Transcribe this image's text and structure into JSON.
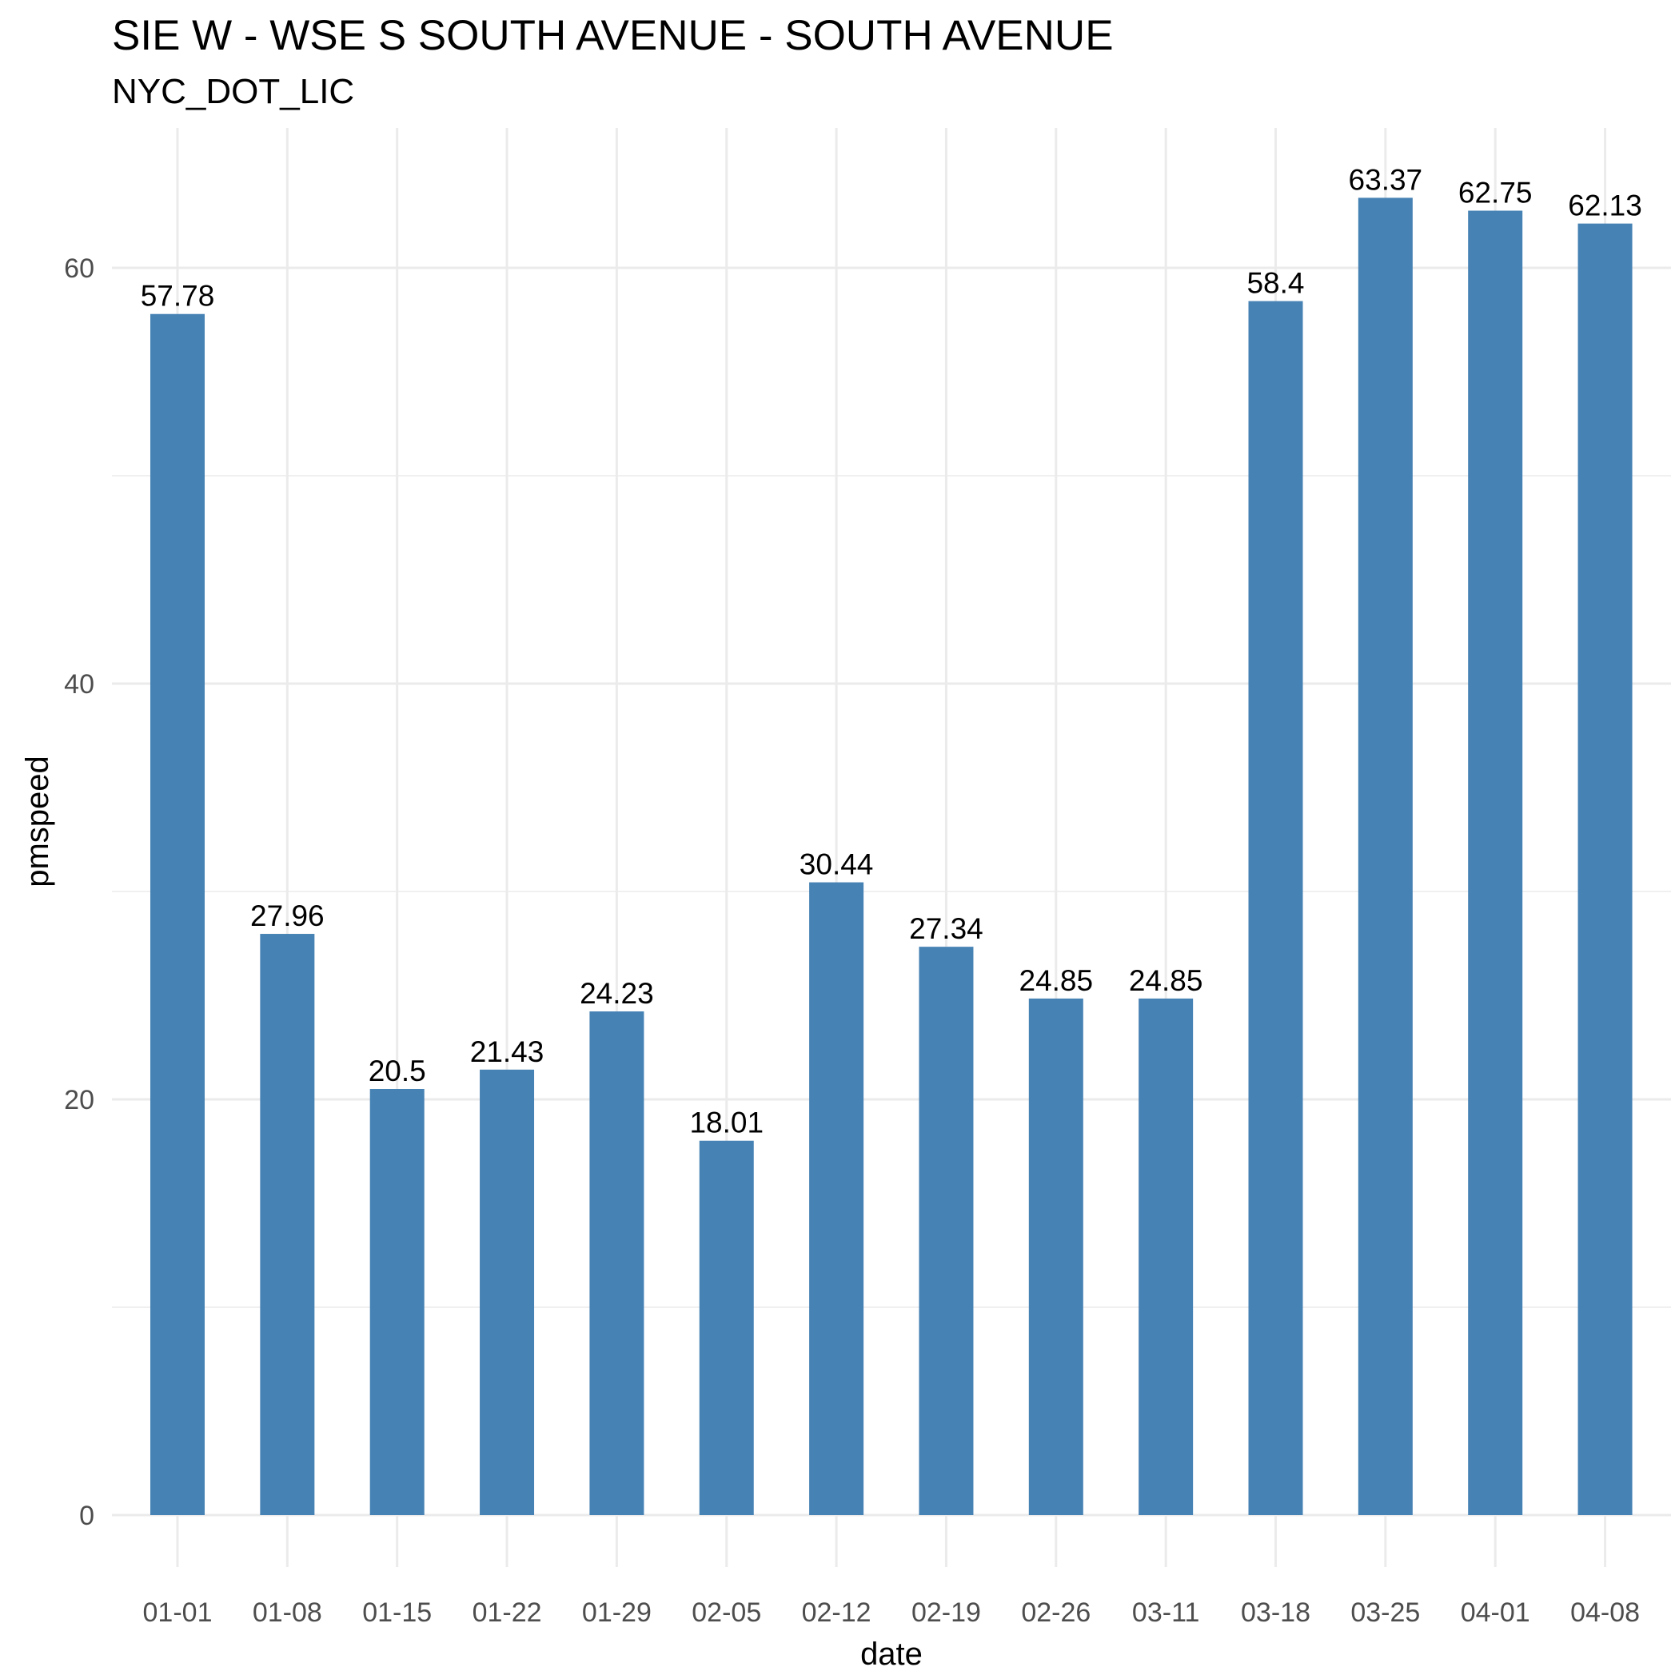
{
  "chart_data": {
    "type": "bar",
    "title": "SIE W - WSE S SOUTH AVENUE - SOUTH AVENUE",
    "subtitle": "NYC_DOT_LIC",
    "xlabel": "date",
    "ylabel": "pmspeed",
    "categories": [
      "01-01",
      "01-08",
      "01-15",
      "01-22",
      "01-29",
      "02-05",
      "02-12",
      "02-19",
      "02-26",
      "03-11",
      "03-18",
      "03-25",
      "04-01",
      "04-08"
    ],
    "values": [
      57.78,
      27.96,
      20.5,
      21.43,
      24.23,
      18.01,
      30.44,
      27.34,
      24.85,
      24.85,
      58.4,
      63.37,
      62.75,
      62.13
    ],
    "data_labels": [
      "57.78",
      "27.96",
      "20.5",
      "21.43",
      "24.23",
      "18.01",
      "30.44",
      "27.34",
      "24.85",
      "24.85",
      "58.4",
      "63.37",
      "62.75",
      "62.13"
    ],
    "y_ticks": [
      0,
      20,
      40,
      60
    ],
    "ylim": [
      0,
      66.5
    ],
    "grid": true,
    "legend": "none",
    "bar_color": "#4682B4",
    "grid_color": "#EBEBEB"
  }
}
